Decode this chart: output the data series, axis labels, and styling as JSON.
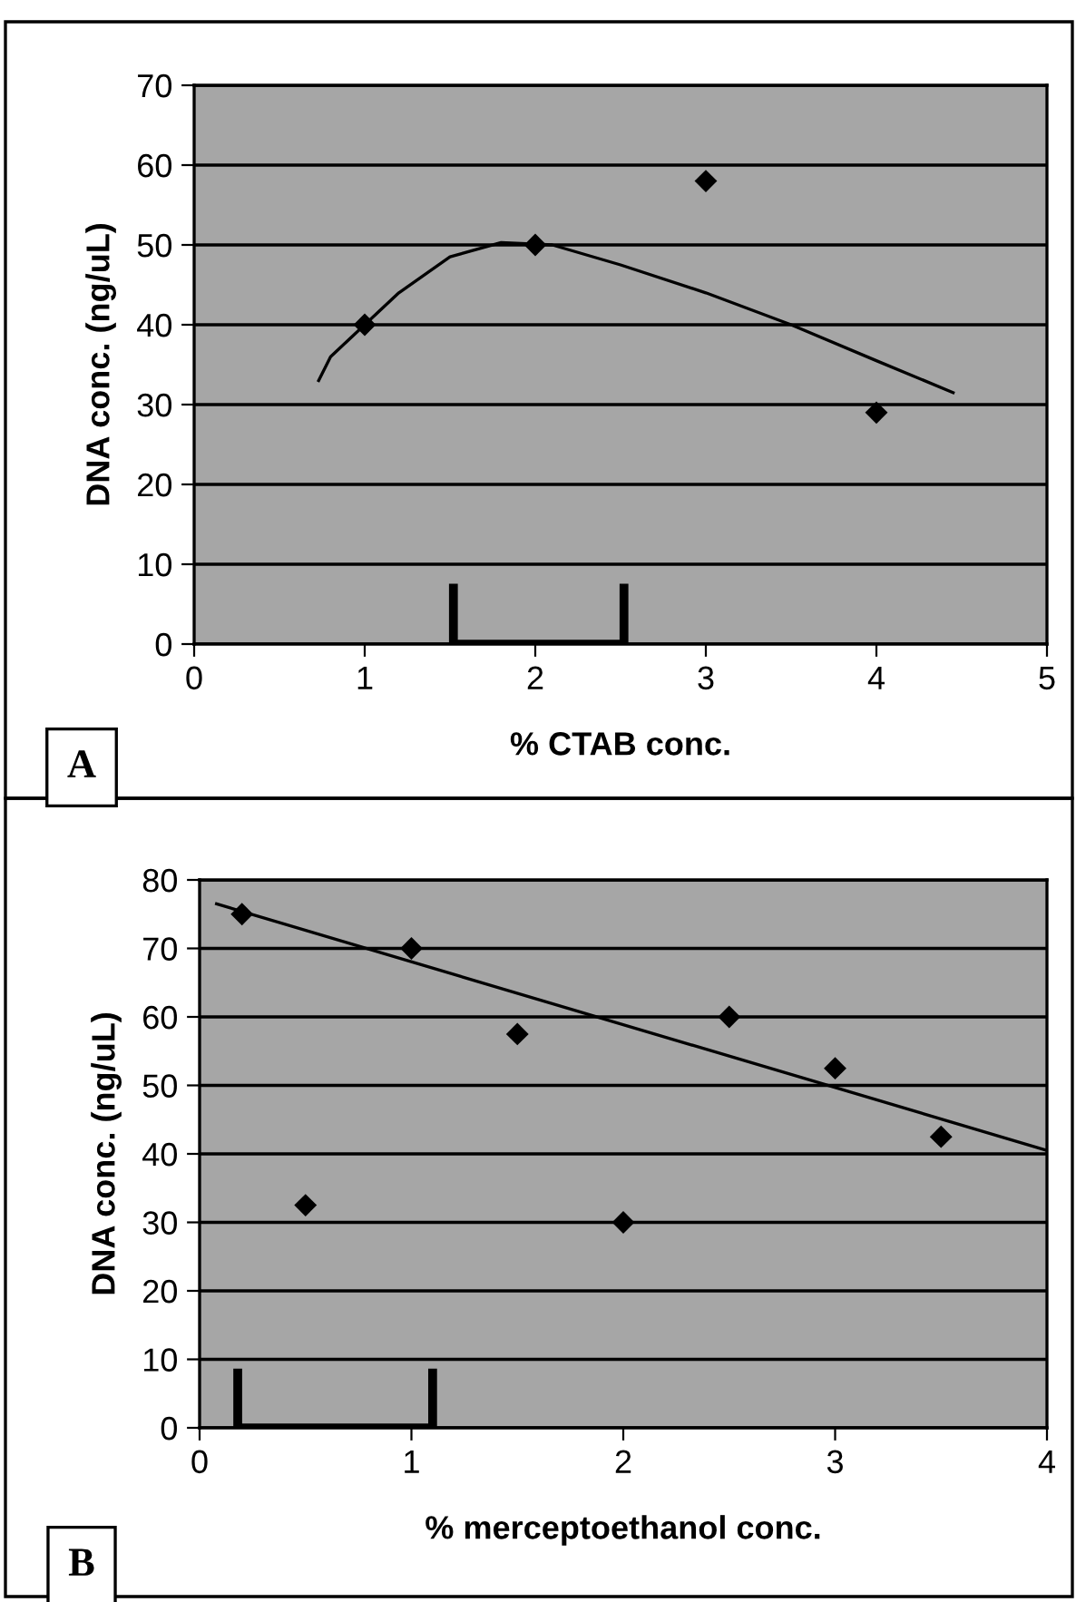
{
  "chart_data": [
    {
      "type": "scatter",
      "xlabel": "% CTAB conc.",
      "ylabel": "DNA conc. (ng/uL)",
      "annotations": [
        "A"
      ],
      "xlim": [
        0,
        5
      ],
      "ylim": [
        0,
        70
      ],
      "xticks": [
        0,
        1,
        2,
        3,
        4,
        5
      ],
      "yticks": [
        0,
        10,
        20,
        30,
        40,
        50,
        60,
        70
      ],
      "grid": "y",
      "marker": "diamond",
      "series": [
        {
          "color": "#000000",
          "x": [
            1,
            2,
            3,
            4
          ],
          "values": [
            40,
            50,
            58,
            29
          ]
        },
        {
          "type": "line",
          "color": "#000000",
          "marker": "none",
          "line_style": "solid",
          "x": [
            0.73,
            0.8,
            1,
            1.2,
            1.5,
            1.8,
            2.1,
            2.5,
            3,
            3.5,
            4,
            4.45
          ],
          "values": [
            33,
            36,
            40,
            44,
            48.5,
            50.3,
            50,
            47.5,
            44,
            40,
            35.5,
            31.5
          ]
        }
      ]
    },
    {
      "type": "scatter",
      "xlabel": "% merceptoethanol conc.",
      "ylabel": "DNA conc. (ng/uL)",
      "annotations": [
        "B"
      ],
      "xlim": [
        0,
        4
      ],
      "ylim": [
        0,
        80
      ],
      "xticks": [
        0,
        1,
        2,
        3,
        4
      ],
      "yticks": [
        0,
        10,
        20,
        30,
        40,
        50,
        60,
        70,
        80
      ],
      "grid": "y",
      "marker": "diamond",
      "series": [
        {
          "color": "#000000",
          "x": [
            0.2,
            0.5,
            1,
            1.5,
            2,
            2.5,
            3,
            3.5
          ],
          "values": [
            75,
            32.5,
            70,
            57.5,
            30,
            60,
            52.5,
            42.5
          ]
        },
        {
          "type": "line",
          "color": "#000000",
          "marker": "none",
          "line_style": "solid",
          "x": [
            0.08,
            4
          ],
          "values": [
            76.5,
            40.5
          ]
        }
      ]
    }
  ]
}
